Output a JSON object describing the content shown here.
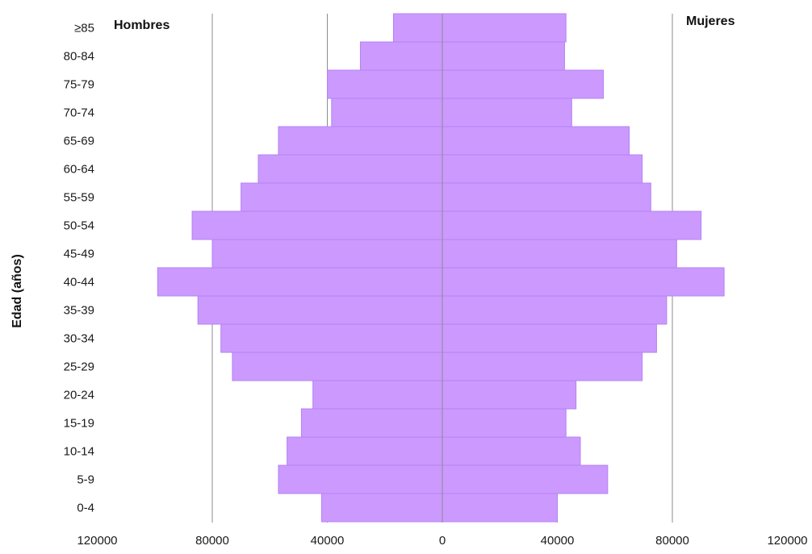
{
  "chart_data": {
    "type": "bar",
    "orientation": "horizontal",
    "subtype": "population-pyramid",
    "ylabel": "Edad (años)",
    "xlabel": "",
    "categories": [
      "0-4",
      "5-9",
      "10-14",
      "15-19",
      "20-24",
      "25-29",
      "30-34",
      "35-39",
      "40-44",
      "45-49",
      "50-54",
      "55-59",
      "60-64",
      "65-69",
      "70-74",
      "75-79",
      "80-84",
      "≥85"
    ],
    "series": [
      {
        "name": "Hombres",
        "side": "left",
        "values": [
          42000,
          57000,
          54000,
          49000,
          45000,
          73000,
          77000,
          85000,
          99000,
          80000,
          87000,
          70000,
          64000,
          57000,
          38500,
          40000,
          28500,
          17000
        ]
      },
      {
        "name": "Mujeres",
        "side": "right",
        "values": [
          40000,
          57500,
          48000,
          43000,
          46500,
          69500,
          74500,
          78000,
          98000,
          81500,
          90000,
          72500,
          69500,
          65000,
          45000,
          56000,
          42500,
          43000
        ]
      }
    ],
    "xlim": [
      -120000,
      120000
    ],
    "x_ticks": [
      -120000,
      -80000,
      -40000,
      0,
      40000,
      80000,
      120000
    ],
    "x_tick_labels": [
      "120000",
      "80000",
      "40000",
      "0",
      "40000",
      "80000",
      "120000"
    ],
    "grid": "vertical",
    "legend": "none",
    "colors": {
      "bar_fill": "#cc99ff",
      "bar_stroke": "#b383f0",
      "grid": "#8c8c8c",
      "center_line": "#8c8c8c"
    }
  }
}
